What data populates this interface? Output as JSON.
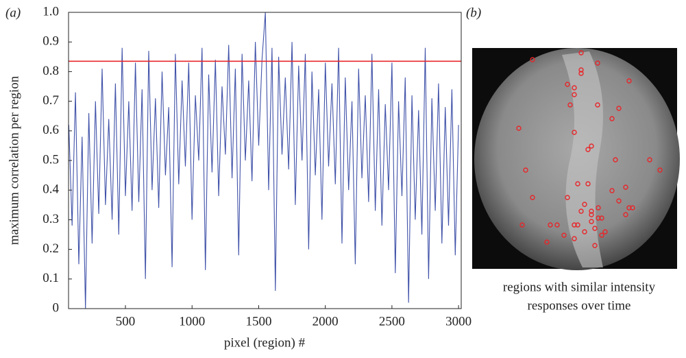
{
  "chart_data": {
    "type": "line",
    "panel_labels": [
      "(a)",
      "(b)"
    ],
    "xlabel": "pixel (region) #",
    "ylabel": "maximum correlation per region",
    "caption": [
      "regions with similar intensity",
      "responses over time"
    ],
    "xlim": [
      73,
      3020
    ],
    "ylim": [
      0,
      1
    ],
    "xticks": [
      500,
      1000,
      1500,
      2000,
      2500,
      3000
    ],
    "yticks": [
      0,
      0.1,
      0.2,
      0.3,
      0.4,
      0.5,
      0.6,
      0.7,
      0.8,
      0.9,
      {
        "value": 1,
        "label": "1.0"
      }
    ],
    "threshold": 0.835,
    "threshold_color": "#e8262a",
    "series": [
      {
        "color": "#3f51a8",
        "x": [
          75,
          100,
          125,
          150,
          175,
          200,
          225,
          250,
          275,
          300,
          325,
          350,
          375,
          400,
          425,
          450,
          475,
          500,
          525,
          550,
          575,
          600,
          625,
          650,
          675,
          700,
          725,
          750,
          775,
          800,
          825,
          850,
          875,
          900,
          925,
          950,
          975,
          1000,
          1025,
          1050,
          1075,
          1100,
          1125,
          1150,
          1175,
          1200,
          1225,
          1250,
          1275,
          1300,
          1325,
          1350,
          1375,
          1400,
          1425,
          1450,
          1475,
          1500,
          1525,
          1550,
          1575,
          1600,
          1625,
          1650,
          1675,
          1700,
          1725,
          1750,
          1775,
          1800,
          1825,
          1850,
          1875,
          1900,
          1925,
          1950,
          1975,
          2000,
          2025,
          2050,
          2075,
          2100,
          2125,
          2150,
          2175,
          2200,
          2225,
          2250,
          2275,
          2300,
          2325,
          2350,
          2375,
          2400,
          2425,
          2450,
          2475,
          2500,
          2525,
          2550,
          2575,
          2600,
          2625,
          2650,
          2675,
          2700,
          2725,
          2750,
          2775,
          2800,
          2825,
          2850,
          2875,
          2900,
          2925,
          2950,
          2975,
          3000
        ],
        "values": [
          0.62,
          0.28,
          0.73,
          0.15,
          0.58,
          0.0,
          0.66,
          0.22,
          0.7,
          0.32,
          0.81,
          0.35,
          0.64,
          0.3,
          0.76,
          0.25,
          0.88,
          0.38,
          0.7,
          0.33,
          0.83,
          0.36,
          0.74,
          0.1,
          0.87,
          0.4,
          0.71,
          0.34,
          0.8,
          0.45,
          0.68,
          0.14,
          0.86,
          0.42,
          0.77,
          0.48,
          0.83,
          0.3,
          0.72,
          0.5,
          0.88,
          0.13,
          0.79,
          0.46,
          0.84,
          0.38,
          0.75,
          0.52,
          0.89,
          0.44,
          0.81,
          0.18,
          0.86,
          0.5,
          0.77,
          0.43,
          0.9,
          0.55,
          0.84,
          1.0,
          0.4,
          0.88,
          0.06,
          0.85,
          0.52,
          0.78,
          0.47,
          0.9,
          0.35,
          0.82,
          0.5,
          0.86,
          0.2,
          0.8,
          0.45,
          0.74,
          0.3,
          0.83,
          0.48,
          0.76,
          0.42,
          0.88,
          0.22,
          0.78,
          0.4,
          0.7,
          0.15,
          0.81,
          0.44,
          0.72,
          0.36,
          0.86,
          0.33,
          0.74,
          0.28,
          0.69,
          0.4,
          0.83,
          0.12,
          0.7,
          0.38,
          0.78,
          0.02,
          0.72,
          0.3,
          0.67,
          0.25,
          0.88,
          0.1,
          0.71,
          0.33,
          0.76,
          0.22,
          0.68,
          0.28,
          0.74,
          0.18,
          0.62
        ]
      }
    ]
  }
}
